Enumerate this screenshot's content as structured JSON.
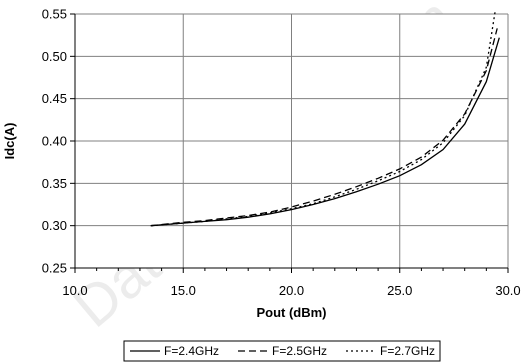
{
  "chart_data": {
    "type": "line",
    "xlabel": "Pout (dBm)",
    "ylabel": "Idc(A)",
    "xlim": [
      10.0,
      30.0
    ],
    "ylim": [
      0.25,
      0.55
    ],
    "x_ticks": [
      "10.0",
      "15.0",
      "20.0",
      "25.0",
      "30.0"
    ],
    "y_ticks": [
      "0.25",
      "0.30",
      "0.35",
      "0.40",
      "0.45",
      "0.50",
      "0.55"
    ],
    "grid": true,
    "legend_position": "bottom",
    "series": [
      {
        "name": "F=2.4GHz",
        "style": "solid",
        "points": [
          [
            13.5,
            0.3
          ],
          [
            15,
            0.303
          ],
          [
            16,
            0.305
          ],
          [
            17,
            0.307
          ],
          [
            18,
            0.31
          ],
          [
            19,
            0.314
          ],
          [
            20,
            0.319
          ],
          [
            21,
            0.325
          ],
          [
            22,
            0.332
          ],
          [
            23,
            0.34
          ],
          [
            24,
            0.349
          ],
          [
            25,
            0.359
          ],
          [
            26,
            0.372
          ],
          [
            27,
            0.39
          ],
          [
            28,
            0.42
          ],
          [
            29,
            0.47
          ],
          [
            29.6,
            0.522
          ]
        ]
      },
      {
        "name": "F=2.5GHz",
        "style": "dashed",
        "points": [
          [
            13.5,
            0.3
          ],
          [
            15,
            0.304
          ],
          [
            16,
            0.306
          ],
          [
            17,
            0.309
          ],
          [
            18,
            0.312
          ],
          [
            19,
            0.316
          ],
          [
            20,
            0.322
          ],
          [
            21,
            0.329
          ],
          [
            22,
            0.337
          ],
          [
            23,
            0.346
          ],
          [
            24,
            0.356
          ],
          [
            25,
            0.367
          ],
          [
            26,
            0.381
          ],
          [
            27,
            0.401
          ],
          [
            28,
            0.432
          ],
          [
            29,
            0.483
          ],
          [
            29.5,
            0.533
          ]
        ]
      },
      {
        "name": "F=2.7GHz",
        "style": "dotted",
        "points": [
          [
            13.5,
            0.3
          ],
          [
            15,
            0.303
          ],
          [
            16,
            0.305
          ],
          [
            17,
            0.308
          ],
          [
            18,
            0.311
          ],
          [
            19,
            0.315
          ],
          [
            20,
            0.32
          ],
          [
            21,
            0.326
          ],
          [
            22,
            0.334
          ],
          [
            23,
            0.343
          ],
          [
            24,
            0.353
          ],
          [
            25,
            0.364
          ],
          [
            26,
            0.378
          ],
          [
            27,
            0.398
          ],
          [
            28,
            0.43
          ],
          [
            29,
            0.487
          ],
          [
            29.4,
            0.552
          ]
        ]
      }
    ]
  },
  "watermark": "DataSheet4U.com"
}
